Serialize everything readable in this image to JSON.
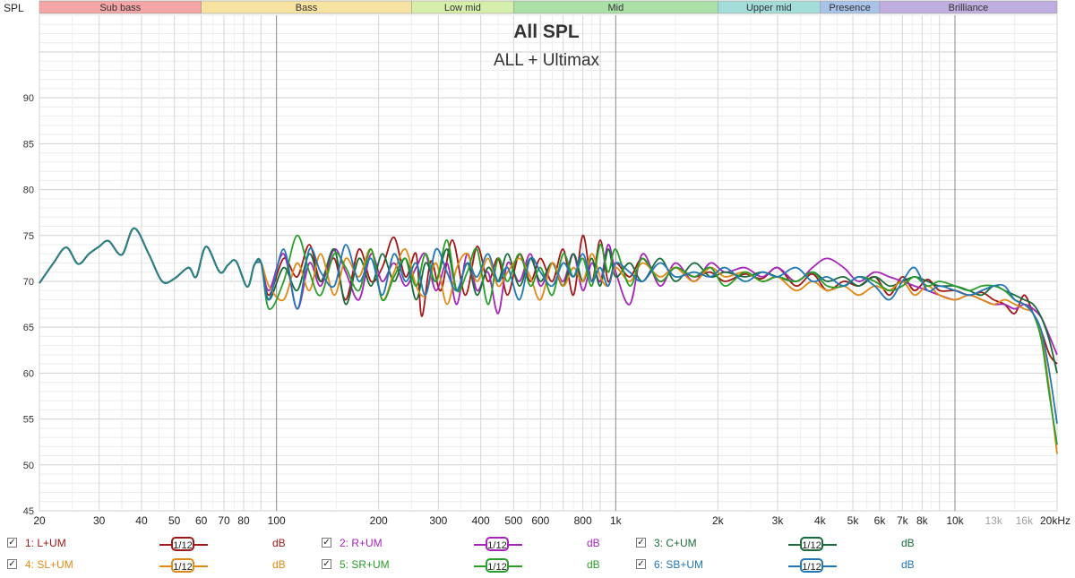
{
  "window": {
    "spl_label": "SPL"
  },
  "bands": [
    {
      "label": "Sub bass",
      "from": 20,
      "to": 60,
      "color": "#f4a6a6"
    },
    {
      "label": "Bass",
      "from": 60,
      "to": 250,
      "color": "#f7e3a1"
    },
    {
      "label": "Low mid",
      "from": 250,
      "to": 500,
      "color": "#d6eeaa"
    },
    {
      "label": "Mid",
      "from": 500,
      "to": 2000,
      "color": "#a9e0a5"
    },
    {
      "label": "Upper mid",
      "from": 2000,
      "to": 4000,
      "color": "#a3dcd8"
    },
    {
      "label": "Presence",
      "from": 4000,
      "to": 6000,
      "color": "#a9c3e8"
    },
    {
      "label": "Brilliance",
      "from": 6000,
      "to": 20000,
      "color": "#c0aee0"
    }
  ],
  "legend": [
    {
      "label": "1: L+UM",
      "smoothing": "1/12",
      "unit": "dB",
      "color": "#a01818"
    },
    {
      "label": "2: R+UM",
      "smoothing": "1/12",
      "unit": "dB",
      "color": "#a525b8"
    },
    {
      "label": "3: C+UM",
      "smoothing": "1/12",
      "unit": "dB",
      "color": "#1a6b3a"
    },
    {
      "label": "4: SL+UM",
      "smoothing": "1/12",
      "unit": "dB",
      "color": "#e08a16"
    },
    {
      "label": "5: SR+UM",
      "smoothing": "1/12",
      "unit": "dB",
      "color": "#2a9e2a"
    },
    {
      "label": "6: SB+UM",
      "smoothing": "1/12",
      "unit": "dB",
      "color": "#2277b5"
    }
  ],
  "chart_data": {
    "type": "line",
    "title": "All SPL",
    "subtitle": "ALL + Ultimax",
    "x_scale": "log",
    "xlim": [
      20,
      20000
    ],
    "ylim": [
      45,
      99
    ],
    "grid": true,
    "x_ticks": [
      "20",
      "30",
      "40",
      "50",
      "60",
      "70",
      "80",
      "100",
      "200",
      "300",
      "400",
      "500",
      "600",
      "800",
      "1k",
      "2k",
      "3k",
      "4k",
      "5k",
      "6k",
      "7k",
      "8k",
      "10k",
      "13k",
      "16k",
      "20kHz"
    ],
    "x_tick_values": [
      20,
      30,
      40,
      50,
      60,
      70,
      80,
      100,
      200,
      300,
      400,
      500,
      600,
      800,
      1000,
      2000,
      3000,
      4000,
      5000,
      6000,
      7000,
      8000,
      10000,
      13000,
      16000,
      20000
    ],
    "x_tick_dim": [
      false,
      false,
      false,
      false,
      false,
      false,
      false,
      false,
      false,
      false,
      false,
      false,
      false,
      false,
      false,
      false,
      false,
      false,
      false,
      false,
      false,
      false,
      false,
      true,
      true,
      false
    ],
    "y_ticks": [
      45,
      50,
      55,
      60,
      65,
      70,
      75,
      80,
      85,
      90
    ],
    "common_low": {
      "x": [
        20,
        22,
        24,
        26,
        28,
        30,
        32,
        35,
        38,
        42,
        46,
        50,
        55,
        58,
        62,
        68,
        72,
        76,
        82,
        86,
        90
      ],
      "y": [
        69.8,
        72.0,
        73.7,
        71.9,
        73.0,
        73.8,
        74.4,
        72.9,
        75.8,
        73.0,
        70.0,
        70.3,
        71.5,
        70.5,
        73.8,
        71.0,
        71.8,
        72.2,
        69.4,
        71.8,
        72.1
      ]
    },
    "series": [
      {
        "name": "1: L+UM",
        "x": [
          95,
          105,
          115,
          125,
          135,
          148,
          160,
          175,
          190,
          205,
          222,
          240,
          258,
          268,
          285,
          305,
          330,
          360,
          390,
          420,
          450,
          480,
          520,
          560,
          600,
          650,
          700,
          750,
          800,
          850,
          900,
          950,
          1000,
          1100,
          1200,
          1350,
          1500,
          1700,
          1900,
          2100,
          2400,
          2700,
          3000,
          3400,
          3800,
          4200,
          4700,
          5200,
          5800,
          6400,
          7000,
          7600,
          8300,
          9000,
          10000,
          11000,
          12000,
          13000,
          14000,
          15000,
          16000,
          17000,
          18000,
          19000,
          20000
        ],
        "y": [
          68.5,
          72.5,
          70.5,
          74.0,
          70.0,
          72.5,
          68.0,
          73.5,
          70.0,
          71.5,
          74.8,
          70.5,
          73.0,
          66.2,
          72.2,
          69.0,
          74.5,
          68.5,
          73.8,
          70.0,
          72.5,
          68.5,
          73.0,
          70.0,
          72.5,
          70.0,
          73.5,
          68.5,
          75.0,
          70.0,
          74.5,
          70.0,
          72.0,
          70.5,
          72.5,
          70.0,
          71.5,
          70.5,
          71.0,
          70.0,
          70.8,
          70.3,
          71.5,
          69.5,
          70.8,
          69.0,
          70.0,
          69.5,
          70.5,
          68.5,
          70.5,
          69.0,
          70.2,
          69.0,
          69.0,
          68.5,
          68.8,
          68.0,
          67.5,
          66.5,
          68.5,
          66.5,
          64.5,
          62.0,
          61.0
        ]
      },
      {
        "name": "2: R+UM",
        "x": [
          95,
          105,
          115,
          125,
          135,
          148,
          160,
          175,
          190,
          205,
          222,
          240,
          258,
          275,
          295,
          318,
          340,
          365,
          390,
          420,
          450,
          480,
          520,
          560,
          600,
          650,
          700,
          750,
          800,
          850,
          900,
          950,
          1000,
          1100,
          1200,
          1350,
          1500,
          1700,
          1900,
          2100,
          2400,
          2700,
          3000,
          3400,
          3800,
          4200,
          4700,
          5200,
          5800,
          6400,
          7000,
          7600,
          8300,
          9000,
          10000,
          11000,
          12000,
          13000,
          14000,
          15000,
          16000,
          17000,
          18000,
          19000,
          20000
        ],
        "y": [
          69.0,
          73.0,
          67.0,
          72.0,
          69.5,
          73.5,
          71.0,
          68.0,
          73.0,
          70.0,
          72.0,
          69.5,
          71.5,
          73.0,
          69.0,
          72.0,
          67.5,
          73.0,
          69.0,
          71.0,
          66.5,
          72.0,
          70.0,
          73.0,
          69.5,
          72.0,
          70.0,
          73.0,
          69.0,
          72.0,
          70.0,
          74.0,
          71.0,
          67.5,
          73.0,
          69.5,
          72.0,
          70.0,
          72.0,
          71.0,
          71.5,
          70.5,
          71.5,
          70.0,
          71.5,
          72.5,
          71.5,
          70.0,
          71.0,
          70.5,
          70.0,
          69.5,
          69.0,
          68.5,
          68.0,
          68.5,
          68.0,
          67.5,
          67.5,
          67.0,
          67.5,
          67.0,
          66.0,
          64.0,
          62.0
        ]
      },
      {
        "name": "3: C+UM",
        "x": [
          95,
          105,
          115,
          125,
          135,
          148,
          160,
          175,
          190,
          205,
          222,
          240,
          258,
          275,
          295,
          318,
          340,
          365,
          390,
          420,
          450,
          480,
          520,
          560,
          600,
          650,
          700,
          750,
          800,
          850,
          900,
          950,
          1000,
          1100,
          1200,
          1350,
          1500,
          1700,
          1900,
          2100,
          2400,
          2700,
          3000,
          3400,
          3800,
          4200,
          4700,
          5200,
          5800,
          6400,
          7000,
          7600,
          8300,
          9000,
          10000,
          11000,
          12000,
          13000,
          14000,
          15000,
          16000,
          17000,
          18000,
          19000,
          20000
        ],
        "y": [
          68.0,
          71.5,
          69.0,
          73.0,
          70.0,
          73.5,
          67.5,
          72.5,
          69.5,
          73.0,
          70.0,
          72.5,
          68.0,
          72.0,
          70.0,
          73.5,
          69.0,
          72.0,
          68.5,
          71.5,
          70.0,
          73.0,
          69.5,
          72.5,
          70.0,
          72.0,
          69.5,
          73.0,
          70.0,
          72.5,
          69.5,
          73.5,
          70.5,
          72.0,
          70.0,
          72.5,
          70.0,
          72.0,
          70.5,
          71.0,
          70.5,
          71.0,
          70.5,
          70.0,
          71.0,
          70.0,
          70.5,
          69.5,
          70.5,
          69.5,
          70.0,
          70.5,
          70.0,
          69.5,
          69.5,
          69.0,
          68.5,
          69.5,
          69.0,
          68.5,
          68.0,
          67.5,
          66.0,
          63.5,
          60.0
        ]
      },
      {
        "name": "4: SL+UM",
        "x": [
          95,
          105,
          115,
          125,
          135,
          148,
          160,
          175,
          190,
          205,
          222,
          240,
          258,
          275,
          295,
          318,
          340,
          365,
          390,
          420,
          450,
          480,
          520,
          560,
          600,
          650,
          700,
          750,
          800,
          850,
          900,
          950,
          1000,
          1100,
          1200,
          1350,
          1500,
          1700,
          1900,
          2100,
          2400,
          2700,
          3000,
          3400,
          3800,
          4200,
          4700,
          5200,
          5800,
          6400,
          7000,
          7600,
          8300,
          9000,
          10000,
          11000,
          12000,
          13000,
          14000,
          15000,
          16000,
          17000,
          18000,
          19000,
          20000
        ],
        "y": [
          69.5,
          68.0,
          72.0,
          69.0,
          73.0,
          68.5,
          72.5,
          70.5,
          73.5,
          68.0,
          71.0,
          73.5,
          69.5,
          68.5,
          72.0,
          67.5,
          71.5,
          73.0,
          70.0,
          72.5,
          69.5,
          71.0,
          72.5,
          70.5,
          68.0,
          72.0,
          69.5,
          71.5,
          70.0,
          73.0,
          70.5,
          69.5,
          71.5,
          70.0,
          72.0,
          70.5,
          71.5,
          70.0,
          71.5,
          70.5,
          71.0,
          70.0,
          70.5,
          69.0,
          70.0,
          69.0,
          69.5,
          68.5,
          69.5,
          69.0,
          70.0,
          68.5,
          69.5,
          68.5,
          68.0,
          68.5,
          68.0,
          67.5,
          68.0,
          67.5,
          67.0,
          66.5,
          64.0,
          58.0,
          51.2
        ]
      },
      {
        "name": "5: SR+UM",
        "x": [
          95,
          105,
          115,
          125,
          135,
          148,
          160,
          175,
          190,
          205,
          222,
          240,
          258,
          275,
          295,
          318,
          340,
          365,
          390,
          420,
          450,
          480,
          520,
          560,
          600,
          650,
          700,
          750,
          800,
          850,
          900,
          950,
          1000,
          1100,
          1200,
          1350,
          1500,
          1700,
          1900,
          2100,
          2400,
          2700,
          3000,
          3400,
          3800,
          4200,
          4700,
          5200,
          5800,
          6400,
          7000,
          7600,
          8300,
          9000,
          10000,
          11000,
          12000,
          13000,
          14000,
          15000,
          16000,
          17000,
          18000,
          19000,
          20000
        ],
        "y": [
          67.0,
          70.0,
          75.0,
          71.0,
          68.5,
          73.0,
          71.5,
          69.0,
          73.5,
          68.0,
          70.5,
          72.5,
          69.5,
          73.0,
          70.0,
          74.5,
          69.0,
          71.0,
          73.5,
          67.5,
          72.5,
          70.0,
          73.0,
          69.5,
          71.5,
          68.5,
          73.0,
          70.5,
          72.5,
          69.5,
          74.0,
          71.0,
          73.5,
          69.5,
          72.5,
          70.0,
          71.5,
          70.5,
          71.5,
          69.5,
          71.0,
          70.0,
          70.5,
          70.0,
          71.0,
          69.5,
          69.5,
          70.5,
          70.0,
          69.0,
          69.5,
          70.5,
          69.5,
          70.0,
          69.5,
          69.0,
          69.5,
          69.5,
          69.0,
          68.0,
          67.5,
          66.5,
          63.5,
          57.5,
          52.2
        ]
      },
      {
        "name": "6: SB+UM",
        "x": [
          95,
          105,
          115,
          125,
          135,
          148,
          160,
          175,
          190,
          205,
          222,
          240,
          258,
          275,
          295,
          318,
          340,
          365,
          390,
          420,
          450,
          480,
          520,
          560,
          600,
          650,
          700,
          750,
          800,
          850,
          900,
          950,
          1000,
          1100,
          1200,
          1350,
          1500,
          1700,
          1900,
          2100,
          2400,
          2700,
          3000,
          3400,
          3800,
          4200,
          4700,
          5200,
          5800,
          6400,
          7000,
          7600,
          8300,
          9000,
          10000,
          11000,
          12000,
          13000,
          14000,
          15000,
          16000,
          17000,
          18000,
          19000,
          20000
        ],
        "y": [
          68.0,
          73.5,
          67.0,
          73.5,
          71.0,
          69.5,
          74.0,
          70.0,
          72.5,
          68.5,
          73.0,
          70.0,
          72.0,
          68.5,
          73.5,
          71.0,
          69.0,
          72.0,
          70.5,
          73.0,
          70.0,
          71.5,
          68.0,
          72.5,
          71.0,
          69.5,
          72.0,
          70.5,
          73.0,
          70.0,
          71.5,
          69.5,
          72.0,
          71.0,
          70.0,
          72.0,
          70.5,
          71.0,
          70.5,
          71.5,
          70.0,
          71.0,
          70.5,
          71.5,
          70.0,
          70.5,
          69.5,
          70.5,
          69.5,
          68.0,
          70.0,
          71.5,
          69.0,
          69.5,
          69.0,
          68.5,
          69.0,
          69.5,
          69.5,
          68.0,
          67.5,
          66.5,
          64.5,
          60.0,
          54.5
        ]
      }
    ]
  }
}
